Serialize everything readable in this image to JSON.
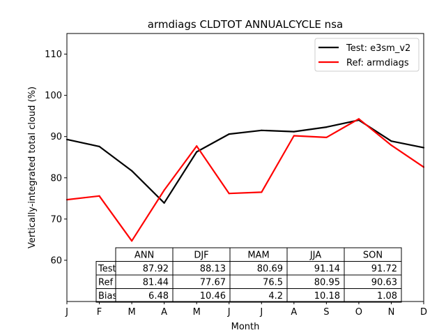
{
  "chart_data": {
    "type": "line",
    "title": "armdiags CLDTOT ANNUALCYCLE nsa",
    "xlabel": "Month",
    "ylabel": "Vertically-integrated total cloud (%)",
    "categories": [
      "J",
      "F",
      "M",
      "A",
      "M",
      "J",
      "J",
      "A",
      "S",
      "O",
      "N",
      "D"
    ],
    "ylim": [
      50,
      115
    ],
    "yticks": [
      60,
      70,
      80,
      90,
      100,
      110
    ],
    "legend_position": "upper-right",
    "grid": false,
    "series": [
      {
        "name": "Test: e3sm_v2",
        "color": "#000000",
        "values": [
          89.3,
          87.6,
          81.7,
          73.9,
          86.3,
          90.6,
          91.5,
          91.2,
          92.3,
          94.0,
          88.9,
          87.3
        ]
      },
      {
        "name": "Ref: armdiags",
        "color": "#ff0000",
        "values": [
          74.7,
          75.6,
          64.7,
          77.0,
          87.7,
          76.2,
          76.5,
          90.2,
          89.8,
          94.3,
          87.9,
          82.6
        ]
      }
    ],
    "table": {
      "columns": [
        "ANN",
        "DJF",
        "MAM",
        "JJA",
        "SON"
      ],
      "rows": [
        {
          "label": "Test",
          "values": [
            "87.92",
            "88.13",
            "80.69",
            "91.14",
            "91.72"
          ]
        },
        {
          "label": "Ref",
          "values": [
            "81.44",
            "77.67",
            "76.5",
            "80.95",
            "90.63"
          ]
        },
        {
          "label": "Bias",
          "values": [
            "6.48",
            "10.46",
            "4.2",
            "10.18",
            "1.08"
          ]
        }
      ]
    }
  }
}
